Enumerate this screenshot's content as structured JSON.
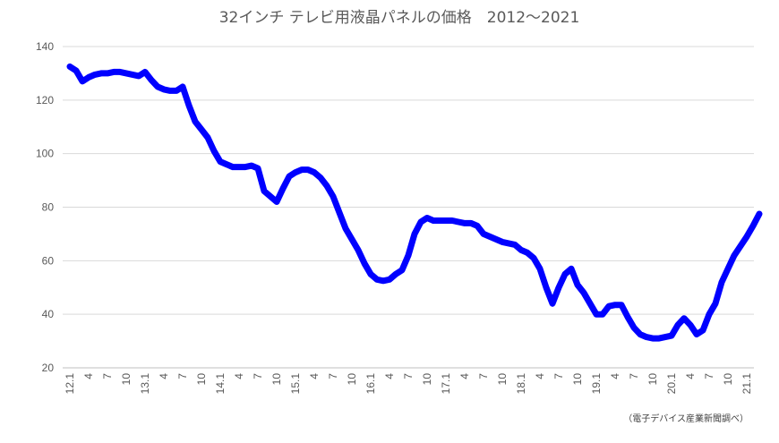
{
  "chart_data": {
    "type": "line",
    "title": "32インチ テレビ用液晶パネルの価格　2012〜2021",
    "source": "（電子デバイス産業新聞調べ）",
    "xlabel": "",
    "ylabel": "",
    "ylim": [
      20,
      140
    ],
    "yticks": [
      20,
      40,
      60,
      80,
      100,
      120,
      140
    ],
    "grid": true,
    "legend": "none",
    "series_color": "#0000ff",
    "x_tick_labels": [
      {
        "i": 0,
        "label": "12.1"
      },
      {
        "i": 3,
        "label": "4"
      },
      {
        "i": 6,
        "label": "7"
      },
      {
        "i": 9,
        "label": "10"
      },
      {
        "i": 12,
        "label": "13.1"
      },
      {
        "i": 15,
        "label": "4"
      },
      {
        "i": 18,
        "label": "7"
      },
      {
        "i": 21,
        "label": "10"
      },
      {
        "i": 24,
        "label": "14.1"
      },
      {
        "i": 27,
        "label": "4"
      },
      {
        "i": 30,
        "label": "7"
      },
      {
        "i": 33,
        "label": "10"
      },
      {
        "i": 36,
        "label": "15.1"
      },
      {
        "i": 39,
        "label": "4"
      },
      {
        "i": 42,
        "label": "7"
      },
      {
        "i": 45,
        "label": "10"
      },
      {
        "i": 48,
        "label": "16.1"
      },
      {
        "i": 51,
        "label": "4"
      },
      {
        "i": 54,
        "label": "7"
      },
      {
        "i": 57,
        "label": "10"
      },
      {
        "i": 60,
        "label": "17.1"
      },
      {
        "i": 63,
        "label": "4"
      },
      {
        "i": 66,
        "label": "7"
      },
      {
        "i": 69,
        "label": "10"
      },
      {
        "i": 72,
        "label": "18.1"
      },
      {
        "i": 75,
        "label": "4"
      },
      {
        "i": 78,
        "label": "7"
      },
      {
        "i": 81,
        "label": "10"
      },
      {
        "i": 84,
        "label": "19.1"
      },
      {
        "i": 87,
        "label": "4"
      },
      {
        "i": 90,
        "label": "7"
      },
      {
        "i": 93,
        "label": "10"
      },
      {
        "i": 96,
        "label": "20.1"
      },
      {
        "i": 99,
        "label": "4"
      },
      {
        "i": 102,
        "label": "7"
      },
      {
        "i": 105,
        "label": "10"
      },
      {
        "i": 108,
        "label": "21.1"
      }
    ],
    "values": [
      132.5,
      131,
      127,
      128.5,
      129.5,
      130,
      130,
      130.5,
      130.5,
      130,
      129.5,
      129,
      130.5,
      127.5,
      125,
      124,
      123.5,
      123.5,
      125,
      118,
      112,
      109,
      106,
      101,
      97,
      96,
      95,
      95,
      95,
      95.5,
      94.5,
      86,
      84,
      82,
      87,
      91.5,
      93,
      94,
      94,
      93,
      91,
      88,
      84,
      78,
      72,
      68,
      64,
      59,
      55,
      53,
      52.5,
      53,
      55,
      56.5,
      62,
      70,
      74.5,
      76,
      75,
      75,
      75,
      75,
      74.5,
      74,
      74,
      73,
      70,
      69,
      68,
      67,
      66.5,
      66,
      64,
      63,
      61,
      57,
      50,
      44,
      50,
      55,
      57,
      51,
      48,
      44,
      40,
      40,
      43,
      43.5,
      43.5,
      39,
      35,
      32.5,
      31.5,
      31,
      31,
      31.5,
      32,
      36,
      38.5,
      36,
      32.5,
      34,
      40,
      44,
      52,
      57,
      62,
      65.5,
      69,
      73,
      77.5
    ]
  }
}
